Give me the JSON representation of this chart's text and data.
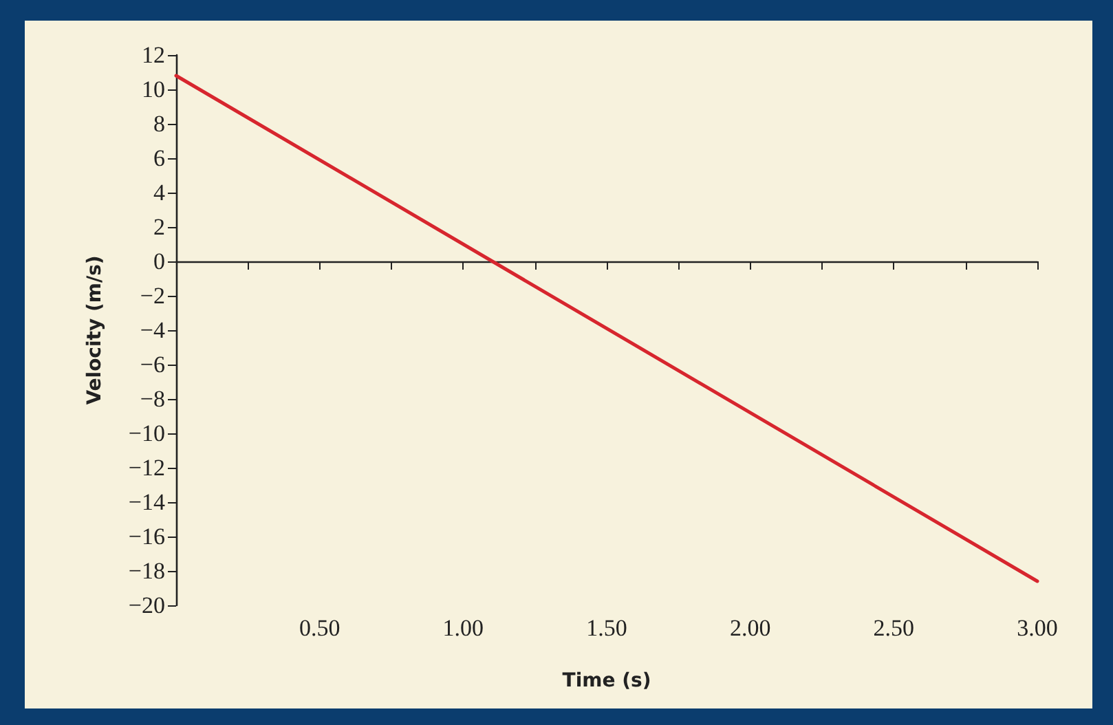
{
  "chart_data": {
    "type": "line",
    "xlabel": "Time (s)",
    "ylabel": "Velocity (m/s)",
    "x": [
      0,
      3
    ],
    "series": [
      {
        "color": "#d7262e",
        "values": [
          10.8,
          -18.6
        ]
      }
    ],
    "xlim": [
      0,
      3
    ],
    "xticks": [
      {
        "value": 0.25,
        "label": null
      },
      {
        "value": 0.5,
        "label": "0.50"
      },
      {
        "value": 0.75,
        "label": null
      },
      {
        "value": 1,
        "label": "1.00"
      },
      {
        "value": 1.25,
        "label": null
      },
      {
        "value": 1.5,
        "label": "1.50"
      },
      {
        "value": 1.75,
        "label": null
      },
      {
        "value": 2,
        "label": "2.00"
      },
      {
        "value": 2.25,
        "label": null
      },
      {
        "value": 2.5,
        "label": "2.50"
      },
      {
        "value": 2.75,
        "label": null
      },
      {
        "value": 3,
        "label": "3.00"
      }
    ],
    "ylim": [
      -20,
      12
    ],
    "yticks": [
      {
        "value": -20,
        "label": "−20"
      },
      {
        "value": -18,
        "label": "−18"
      },
      {
        "value": -16,
        "label": "−16"
      },
      {
        "value": -14,
        "label": "−14"
      },
      {
        "value": -12,
        "label": "−12"
      },
      {
        "value": -10,
        "label": "−10"
      },
      {
        "value": -8,
        "label": "−8"
      },
      {
        "value": -6,
        "label": "−6"
      },
      {
        "value": -4,
        "label": "−4"
      },
      {
        "value": -2,
        "label": "−2"
      },
      0,
      2,
      4,
      6,
      8,
      10,
      12
    ],
    "marker": "none",
    "line_style": "solid"
  }
}
